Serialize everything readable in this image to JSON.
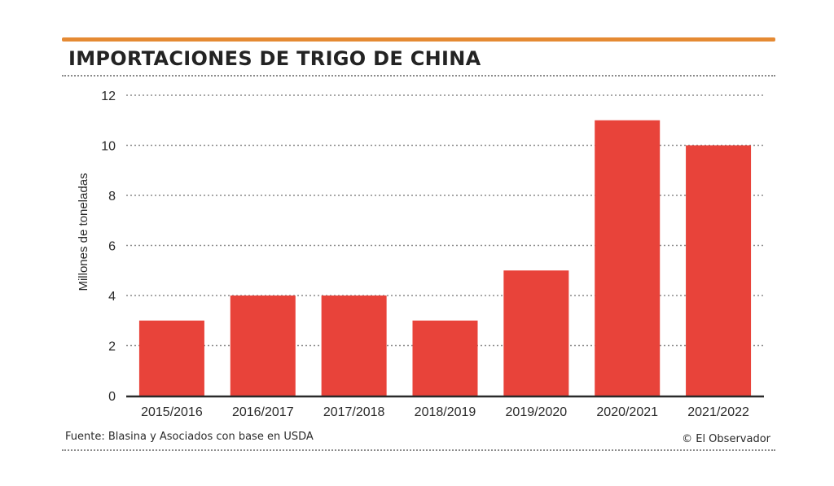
{
  "title": "IMPORTACIONES DE TRIGO DE CHINA",
  "source": "Fuente: Blasina y Asociados con base en USDA",
  "credit": "© El Observador",
  "colors": {
    "accent_rule": "#e58a33",
    "bar": "#e8433a",
    "grid": "#8a8a8a",
    "axis": "#2a2a2a"
  },
  "chart_data": {
    "type": "bar",
    "title": "IMPORTACIONES DE TRIGO DE CHINA",
    "xlabel": "",
    "ylabel": "Millones de toneladas",
    "categories": [
      "2015/2016",
      "2016/2017",
      "2017/2018",
      "2018/2019",
      "2019/2020",
      "2020/2021",
      "2021/2022"
    ],
    "values": [
      3,
      4,
      4,
      3,
      5,
      11,
      10
    ],
    "ylim": [
      0,
      12
    ],
    "yticks": [
      0,
      2,
      4,
      6,
      8,
      10,
      12
    ],
    "grid": true,
    "legend": "none"
  }
}
